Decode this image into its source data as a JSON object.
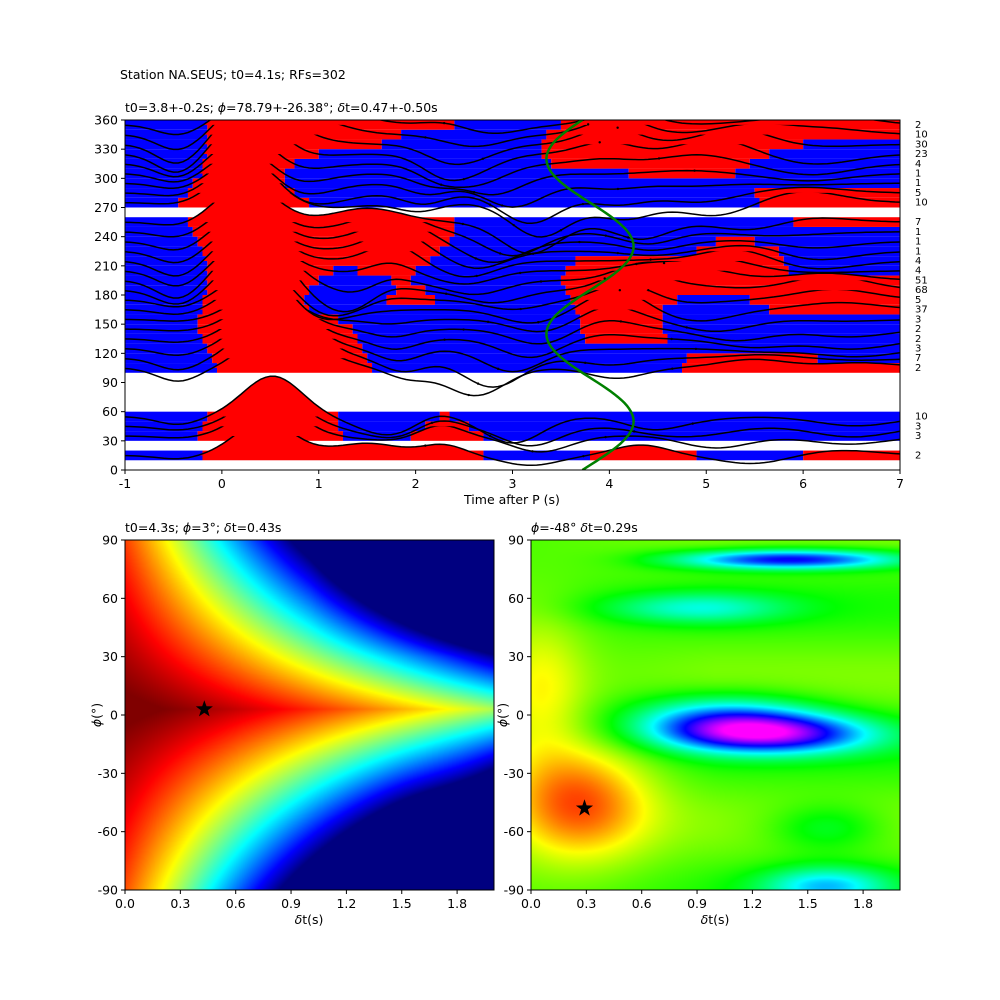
{
  "figure": {
    "suptitle": "Station NA.SEUS; t0=4.1s; RFs=302"
  },
  "chart_data": [
    {
      "type": "line",
      "name": "rf-gather",
      "title_parts": {
        "t0": "t0=3.8+-0.2s; ",
        "phi_sym": "ϕ",
        "phi": "=78.79+-26.38°; ",
        "dt_sym": "δ",
        "dt": "t=0.47+-0.50s"
      },
      "xlabel": "Time after P (s)",
      "xlim": [
        -1,
        7
      ],
      "ylim": [
        0,
        360
      ],
      "xticks": [
        -1,
        0,
        1,
        2,
        3,
        4,
        5,
        6,
        7
      ],
      "yticks": [
        0,
        30,
        60,
        90,
        120,
        150,
        180,
        210,
        240,
        270,
        300,
        330,
        360
      ],
      "fill_positive": "#ff0000",
      "fill_negative": "#0000ff",
      "curve_color": "#008000",
      "bins": [
        {
          "baz": 15,
          "count": 2
        },
        {
          "baz": 35,
          "count": 3
        },
        {
          "baz": 45,
          "count": 3
        },
        {
          "baz": 55,
          "count": 10
        },
        {
          "baz": 105,
          "count": 2
        },
        {
          "baz": 115,
          "count": 7
        },
        {
          "baz": 125,
          "count": 3
        },
        {
          "baz": 135,
          "count": 2
        },
        {
          "baz": 145,
          "count": 2
        },
        {
          "baz": 155,
          "count": 3
        },
        {
          "baz": 165,
          "count": 37
        },
        {
          "baz": 175,
          "count": 5
        },
        {
          "baz": 185,
          "count": 68
        },
        {
          "baz": 195,
          "count": 51
        },
        {
          "baz": 205,
          "count": 4
        },
        {
          "baz": 215,
          "count": 4
        },
        {
          "baz": 225,
          "count": 1
        },
        {
          "baz": 235,
          "count": 1
        },
        {
          "baz": 245,
          "count": 1
        },
        {
          "baz": 255,
          "count": 7
        },
        {
          "baz": 275,
          "count": 10
        },
        {
          "baz": 285,
          "count": 5
        },
        {
          "baz": 295,
          "count": 1
        },
        {
          "baz": 305,
          "count": 1
        },
        {
          "baz": 315,
          "count": 4
        },
        {
          "baz": 325,
          "count": 23
        },
        {
          "baz": 335,
          "count": 30
        },
        {
          "baz": 345,
          "count": 10
        },
        {
          "baz": 355,
          "count": 2
        }
      ]
    },
    {
      "type": "heatmap",
      "name": "energy-map-left",
      "title_parts": {
        "a": "t0=4.3s; ",
        "phi_sym": "ϕ",
        "b": "=3°; ",
        "dt_sym": "δ",
        "c": "t=0.43s"
      },
      "xlabel_parts": {
        "sym": "δ",
        "rest": "t(s)"
      },
      "ylabel_parts": {
        "sym": "ϕ",
        "rest": "(°)"
      },
      "xlim": [
        0,
        2
      ],
      "ylim": [
        -90,
        90
      ],
      "xticks": [
        "0.0",
        "0.3",
        "0.6",
        "0.9",
        "1.2",
        "1.5",
        "1.8"
      ],
      "yticks": [
        "-90",
        "-60",
        "-30",
        "0",
        "30",
        "60",
        "90"
      ],
      "colormap": "jet",
      "best": {
        "dt": 0.43,
        "phi": 3
      }
    },
    {
      "type": "heatmap",
      "name": "energy-map-right",
      "title_parts": {
        "phi_sym": "ϕ",
        "a": "=-48° ",
        "dt_sym": "δ",
        "b": "t=0.29s"
      },
      "xlabel_parts": {
        "sym": "δ",
        "rest": "t(s)"
      },
      "ylabel_parts": {
        "sym": "ϕ",
        "rest": "(°)"
      },
      "xlim": [
        0,
        2
      ],
      "ylim": [
        -90,
        90
      ],
      "xticks": [
        "0.0",
        "0.3",
        "0.6",
        "0.9",
        "1.2",
        "1.5",
        "1.8"
      ],
      "yticks": [
        "-90",
        "-60",
        "-30",
        "0",
        "30",
        "60",
        "90"
      ],
      "colormap": "gist_rainbow",
      "best": {
        "dt": 0.29,
        "phi": -48
      }
    }
  ]
}
